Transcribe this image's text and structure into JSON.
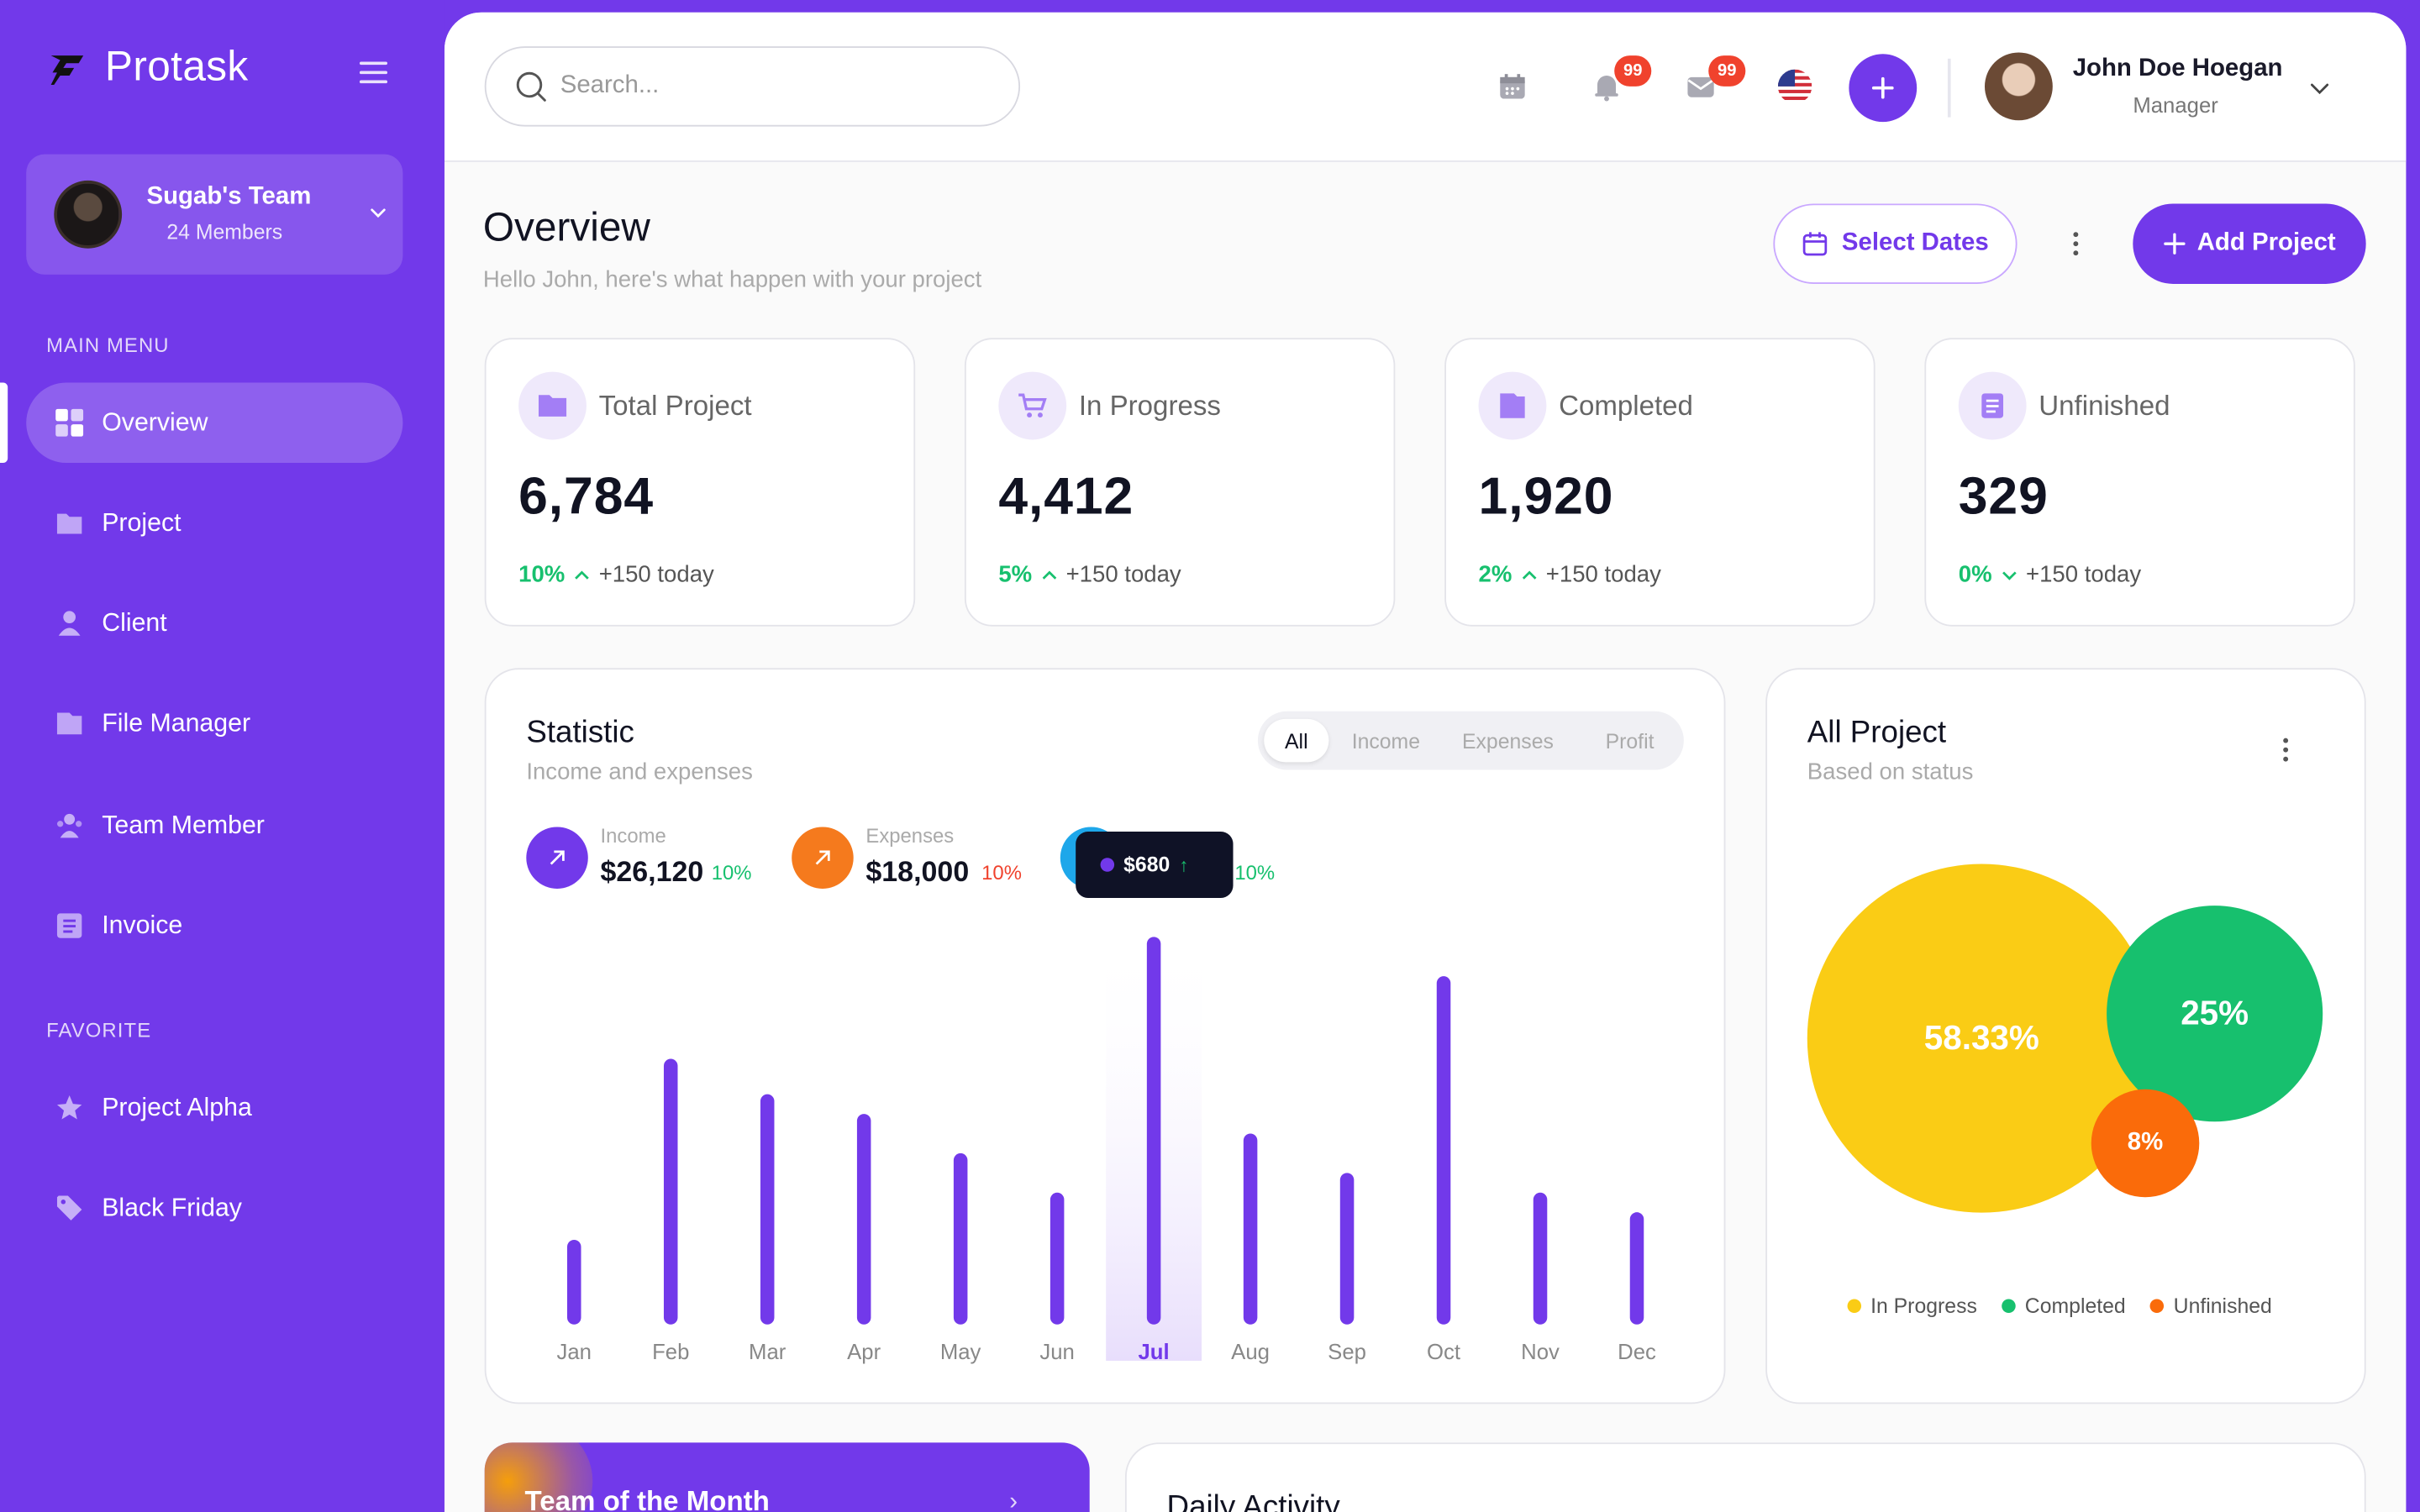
{
  "sidebar": {
    "brand": "Protask",
    "team": {
      "name": "Sugab's Team",
      "members": "24 Members"
    },
    "main_menu_label": "MAIN MENU",
    "items": [
      {
        "label": "Overview",
        "icon": "grid-icon",
        "active": true
      },
      {
        "label": "Project",
        "icon": "folder-icon"
      },
      {
        "label": "Client",
        "icon": "user-icon"
      },
      {
        "label": "File Manager",
        "icon": "file-icon"
      },
      {
        "label": "Team Member",
        "icon": "team-icon"
      },
      {
        "label": "Invoice",
        "icon": "invoice-icon"
      }
    ],
    "favorite_label": "FAVORITE",
    "favorites": [
      {
        "label": "Project Alpha",
        "icon": "star-icon"
      },
      {
        "label": "Black Friday",
        "icon": "tag-icon"
      }
    ]
  },
  "topbar": {
    "search_placeholder": "Search...",
    "notifications_count": "99",
    "messages_count": "99",
    "user_name": "John Doe Hoegan",
    "user_role": "Manager"
  },
  "header": {
    "title": "Overview",
    "subtitle": "Hello John, here's what happen with your project",
    "select_dates": "Select Dates",
    "add_project": "Add Project"
  },
  "stats": [
    {
      "label": "Total Project",
      "value": "6,784",
      "pct": "10%",
      "trend": "up",
      "today": "+150 today"
    },
    {
      "label": "In Progress",
      "value": "4,412",
      "pct": "5%",
      "trend": "up",
      "today": "+150 today"
    },
    {
      "label": "Completed",
      "value": "1,920",
      "pct": "2%",
      "trend": "up",
      "today": "+150 today"
    },
    {
      "label": "Unfinished",
      "value": "329",
      "pct": "0%",
      "trend": "down",
      "today": "+150 today"
    }
  ],
  "statistic": {
    "title": "Statistic",
    "subtitle": "Income and expenses",
    "tabs": [
      "All",
      "Income",
      "Expenses",
      "Profit"
    ],
    "active_tab": "All",
    "income": {
      "label": "Income",
      "value": "$26,120",
      "pct": "10%"
    },
    "expenses": {
      "label": "Expenses",
      "value": "$18,000",
      "pct": "10%"
    },
    "profit": {
      "pct": "10%"
    },
    "tooltip": "$680",
    "colors": {
      "income": "#7239ea",
      "expenses": "#f57a1d",
      "profit": "#1ea7ea",
      "positive": "#17c06e",
      "negative": "#f0422d"
    }
  },
  "chart_data": {
    "type": "bar",
    "categories": [
      "Jan",
      "Feb",
      "Mar",
      "Apr",
      "May",
      "Jun",
      "Jul",
      "Aug",
      "Sep",
      "Oct",
      "Nov",
      "Dec"
    ],
    "values": [
      180,
      640,
      550,
      500,
      400,
      300,
      950,
      450,
      350,
      850,
      300,
      250
    ],
    "highlight": "Jul",
    "ylim": [
      0,
      1000
    ],
    "grid": false,
    "bar_color": "#7239ea"
  },
  "all_project": {
    "title": "All Project",
    "subtitle": "Based on status",
    "bubbles": [
      {
        "label": "58.33%",
        "color": "#facc15"
      },
      {
        "label": "25%",
        "color": "#17c06e"
      },
      {
        "label": "8%",
        "color": "#fa6b0a"
      }
    ],
    "legend": [
      {
        "label": "In Progress",
        "color": "#facc15"
      },
      {
        "label": "Completed",
        "color": "#17c06e"
      },
      {
        "label": "Unfinished",
        "color": "#fa6b0a"
      }
    ]
  },
  "bottom": {
    "team_of_month": "Team of the Month",
    "daily_activity": "Daily Activity"
  }
}
